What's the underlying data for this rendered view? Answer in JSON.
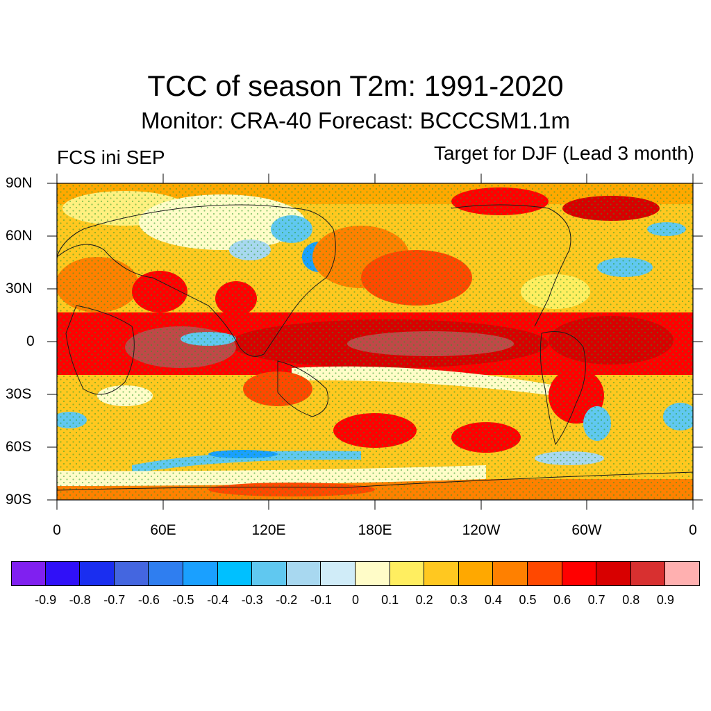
{
  "title": "TCC of season T2m: 1991-2020",
  "subtitle": "Monitor: CRA-40   Forecast: BCCCSM1.1m",
  "left_label": "FCS ini SEP",
  "right_label": "Target for DJF (Lead 3 month)",
  "lat_labels": [
    "90N",
    "60N",
    "30N",
    "0",
    "30S",
    "60S",
    "90S"
  ],
  "lon_labels": [
    "0",
    "60E",
    "120E",
    "180E",
    "120W",
    "60W",
    "0"
  ],
  "colorbar": {
    "colors": [
      "#8020f0",
      "#3010f8",
      "#1a2ef0",
      "#4466e0",
      "#2f7ef0",
      "#1aa0ff",
      "#00c0ff",
      "#60c8f0",
      "#a8d8f0",
      "#d0ecf8",
      "#fffcc8",
      "#ffee60",
      "#ffc820",
      "#ffa800",
      "#ff8000",
      "#ff4800",
      "#ff0000",
      "#d80000",
      "#d83030",
      "#ffb0b0"
    ],
    "labels": [
      "-0.9",
      "-0.8",
      "-0.7",
      "-0.6",
      "-0.5",
      "-0.4",
      "-0.3",
      "-0.2",
      "-0.1",
      "0",
      "0.1",
      "0.2",
      "0.3",
      "0.4",
      "0.5",
      "0.6",
      "0.7",
      "0.8",
      "0.9"
    ]
  },
  "map_colors": {
    "ocean_base": "#ffc820",
    "stipple": "#2a9a2a",
    "coastline": "#1a1a1a"
  }
}
